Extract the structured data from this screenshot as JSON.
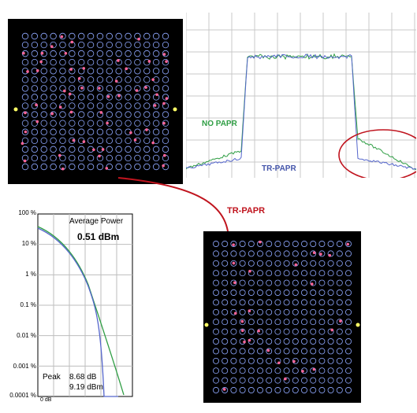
{
  "labels": {
    "no_papr": "NO PAPR",
    "tr_papr": "TR-PAPR",
    "arrow_caption": "TR-PAPR"
  },
  "ccdf": {
    "title": "Average Power",
    "average_power": "0.51 dBm",
    "peak_label": "Peak",
    "peak_db": "8.68 dB",
    "peak_dbm": "9.19 dBm",
    "y_ticks": [
      "100 %",
      "10 %",
      "1 %",
      "0.1 %",
      "0.01 %",
      "0.001 %",
      "0.0001 %"
    ],
    "x_tick": "0 dB"
  },
  "colors": {
    "no_papr": "#2f9e44",
    "tr_papr": "#5566cc",
    "arrow": "#c0141e",
    "constellation_point": "#8fa8ff",
    "constellation_outlier": "#ff6699"
  },
  "constellation": {
    "grid": 16
  }
}
